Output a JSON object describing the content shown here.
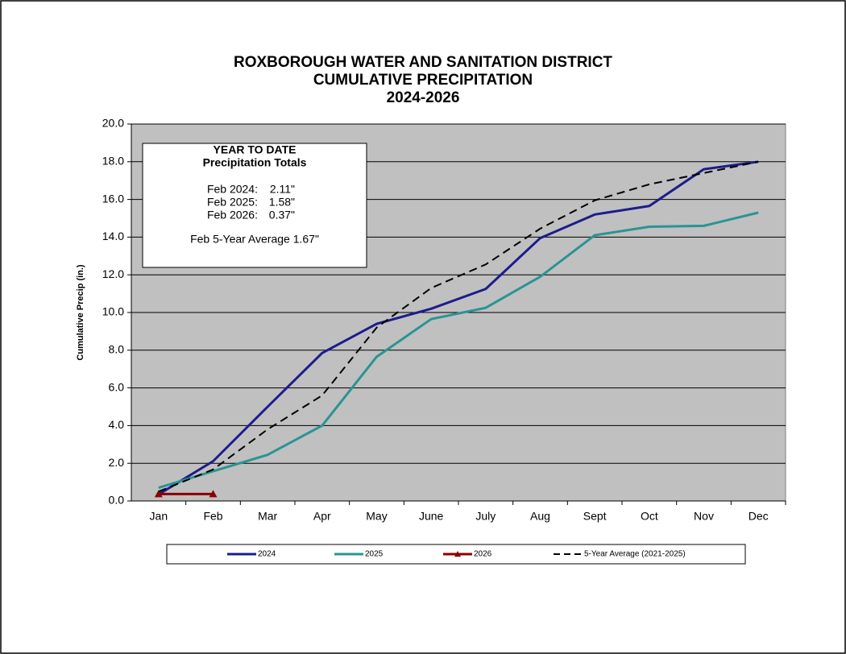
{
  "chart_data": {
    "type": "line",
    "title": [
      "ROXBOROUGH WATER AND SANITATION DISTRICT",
      "CUMULATIVE PRECIPITATION",
      "2024-2026"
    ],
    "ylabel": "Cumulative Precip (in.)",
    "categories": [
      "Jan",
      "Feb",
      "Mar",
      "Apr",
      "May",
      "June",
      "July",
      "Aug",
      "Sept",
      "Oct",
      "Nov",
      "Dec"
    ],
    "series": [
      {
        "name": "2024",
        "color": "#1c1c8e",
        "style": "solid",
        "values": [
          0.35,
          2.11,
          5.0,
          7.85,
          9.4,
          10.2,
          11.25,
          13.95,
          15.2,
          15.65,
          17.6,
          18.0
        ]
      },
      {
        "name": "2025",
        "color": "#2a9494",
        "style": "solid",
        "values": [
          0.7,
          1.58,
          2.45,
          4.0,
          7.65,
          9.65,
          10.25,
          11.9,
          14.1,
          14.55,
          14.6,
          15.3
        ]
      },
      {
        "name": "2026",
        "color": "#8b0000",
        "style": "solid",
        "marker": "triangle",
        "values": [
          0.37,
          0.37,
          null,
          null,
          null,
          null,
          null,
          null,
          null,
          null,
          null,
          null
        ]
      },
      {
        "name": "5-Year Average (2021-2025)",
        "color": "#000000",
        "style": "dashed",
        "values": [
          0.5,
          1.67,
          3.8,
          5.6,
          9.2,
          11.3,
          12.55,
          14.45,
          15.95,
          16.8,
          17.4,
          18.0
        ]
      }
    ],
    "ylim": [
      0,
      20
    ],
    "yticks": [
      {
        "value": 0,
        "label": "0.0"
      },
      {
        "value": 2,
        "label": "2.0"
      },
      {
        "value": 4,
        "label": "4.0"
      },
      {
        "value": 6,
        "label": "6.0"
      },
      {
        "value": 8,
        "label": "8.0"
      },
      {
        "value": 10,
        "label": "10.0"
      },
      {
        "value": 12,
        "label": "12.0"
      },
      {
        "value": 14,
        "label": "14.0"
      },
      {
        "value": 16,
        "label": "16.0"
      },
      {
        "value": 18,
        "label": "18.0"
      },
      {
        "value": 20,
        "label": "20.0"
      }
    ],
    "grid": true,
    "legend": "bottom",
    "annotation": {
      "heading": [
        "YEAR TO DATE",
        "Precipitation Totals"
      ],
      "rows": [
        {
          "label": "Feb 2024:",
          "value": "2.11\""
        },
        {
          "label": "Feb 2025:",
          "value": "1.58\""
        },
        {
          "label": "Feb 2026:",
          "value": "0.37\""
        }
      ],
      "footer": "Feb 5-Year Average 1.67\""
    }
  }
}
